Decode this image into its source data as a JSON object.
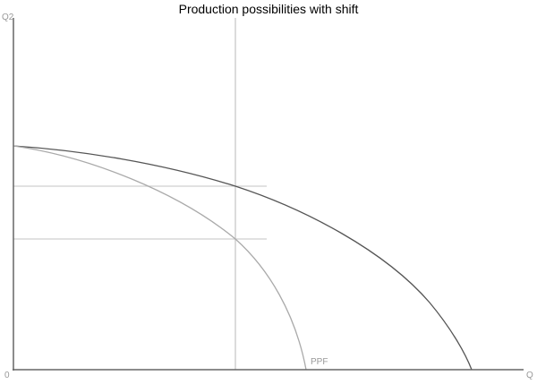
{
  "chart_data": {
    "type": "line",
    "title": "Production possibilities with shift",
    "xlabel": "Q",
    "ylabel": "Q2",
    "origin_label": "0",
    "grid": false,
    "series": [
      {
        "name": "",
        "color": "#555555"
      },
      {
        "name": "PPF",
        "color": "#aaaaaa"
      }
    ],
    "guide_color": "#cccccc"
  }
}
